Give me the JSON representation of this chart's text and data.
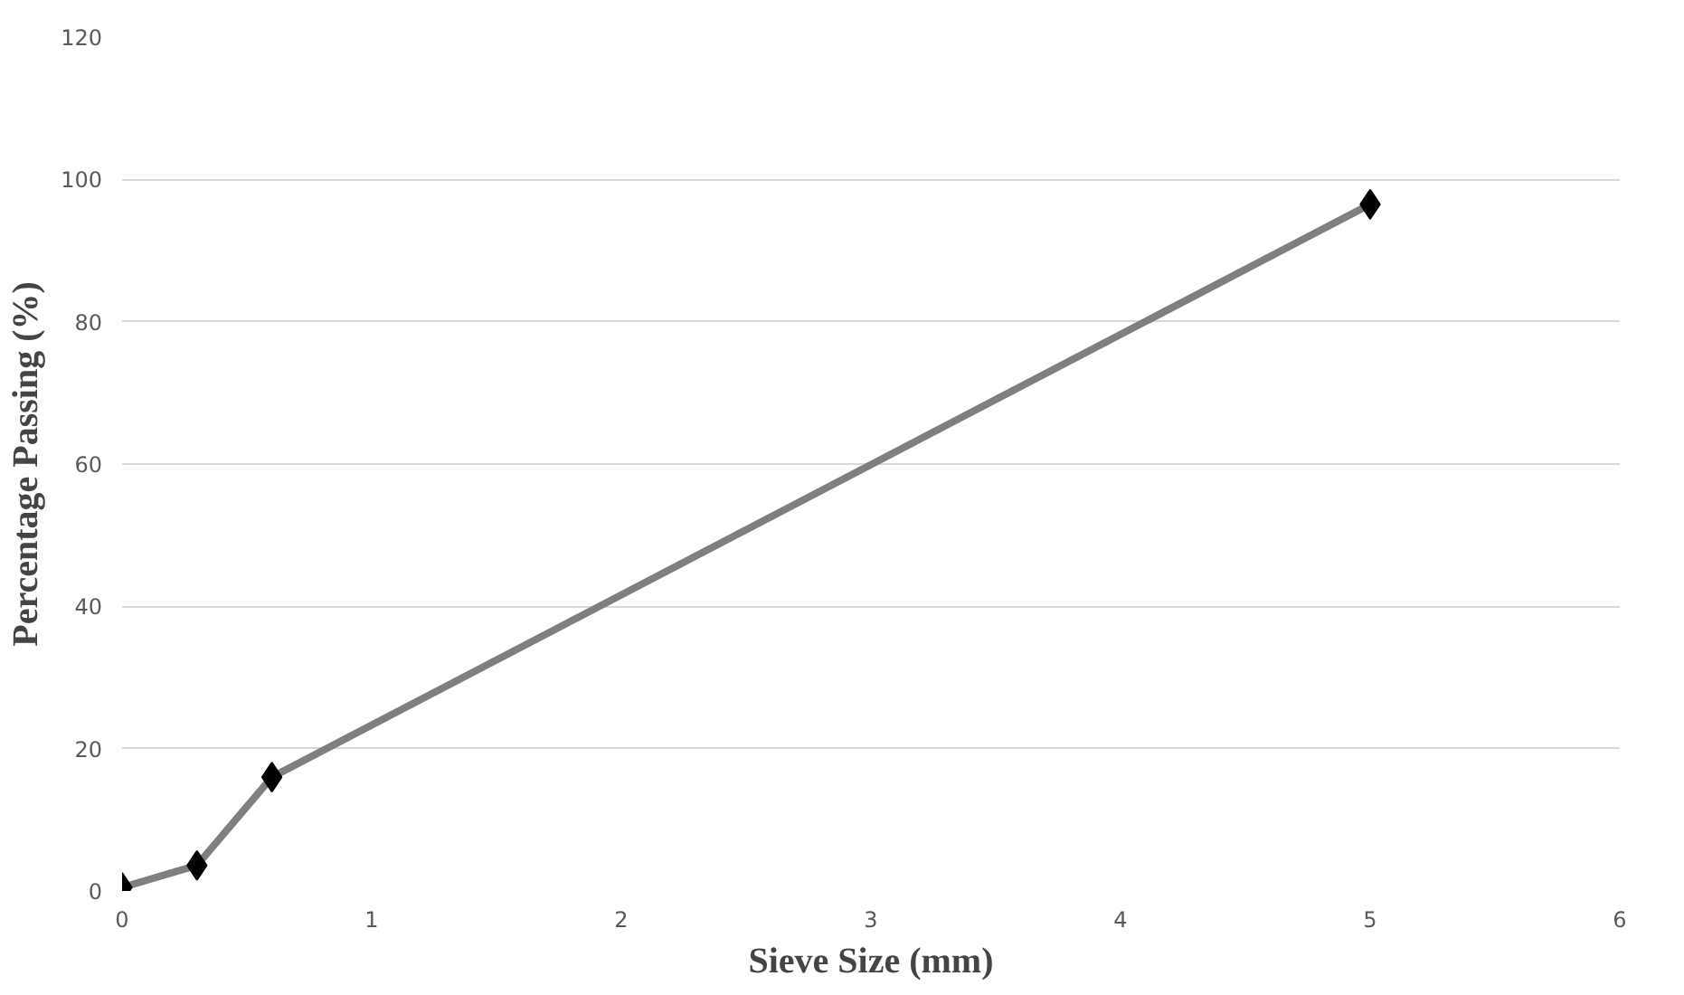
{
  "chart_data": {
    "type": "line",
    "xlabel": "Sieve Size (mm)",
    "ylabel": "Percentage Passing (%)",
    "x": [
      0,
      0.3,
      0.6,
      5
    ],
    "series": [
      {
        "color": "#7f7f7f",
        "values": [
          0.5,
          3.6,
          16,
          96.5
        ]
      }
    ],
    "xlim": [
      0,
      6
    ],
    "xticks": [
      0,
      1,
      2,
      3,
      4,
      5,
      6
    ],
    "ylim": [
      0,
      120
    ],
    "yticks": [
      0,
      20,
      40,
      60,
      80,
      100,
      120
    ],
    "grid": "y",
    "marker": "diamond",
    "line_style": "solid"
  }
}
